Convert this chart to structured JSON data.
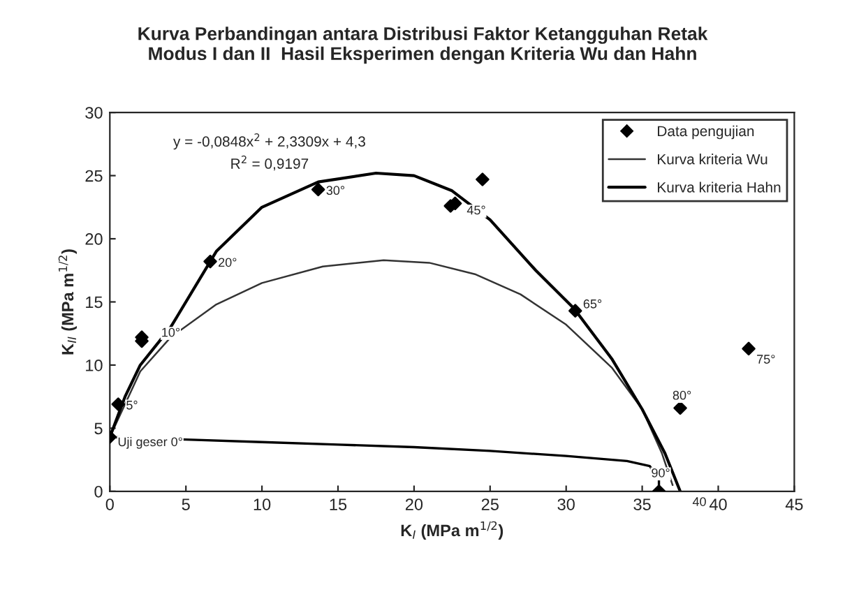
{
  "chart_data": {
    "type": "scatter",
    "title": "Kurva Perbandingan antara Distribusi Faktor Ketangguhan Retak\nModus I dan II  Hasil Eksperimen dengan Kriteria Wu dan Hahn",
    "xlabel": "K$_{I}$ (MPa m$^{1/2}$)",
    "ylabel": "K$_{II}$ (MPa m$^{1/2}$)",
    "xlim": [
      0,
      45
    ],
    "xticks": [
      0,
      5,
      10,
      15,
      20,
      25,
      30,
      35,
      40,
      45
    ],
    "ylim": [
      0,
      30
    ],
    "yticks": [
      0,
      5,
      10,
      15,
      20,
      25,
      30
    ],
    "grid": false,
    "legend": "top right",
    "series": [
      {
        "name": "Data pengujian",
        "marker": "diamond",
        "color": "#000000",
        "x": [
          0,
          0.55,
          2.1,
          2.1,
          6.6,
          13.7,
          22.4,
          22.7,
          24.5,
          30.6,
          42.0,
          37.5,
          36.1
        ],
        "values": [
          4.3,
          6.9,
          12.2,
          11.9,
          18.2,
          23.9,
          22.6,
          22.8,
          24.7,
          14.3,
          11.3,
          6.6,
          0
        ]
      },
      {
        "name": "Kurva kriteria Wu",
        "type": "line",
        "color": "#333333",
        "x": [
          0,
          2,
          4,
          7,
          10,
          14,
          18,
          21,
          24,
          27,
          30,
          33,
          35,
          36.3,
          37
        ],
        "values": [
          4.3,
          9.5,
          12.2,
          14.8,
          16.5,
          17.8,
          18.3,
          18.1,
          17.2,
          15.6,
          13.2,
          9.8,
          6.5,
          3,
          0.5
        ]
      },
      {
        "name": "Kurva kriteria Hahn",
        "type": "line",
        "color": "#000000",
        "x": [
          0,
          1,
          2,
          4,
          7,
          10,
          13.7,
          17.5,
          20,
          22.5,
          25,
          28,
          30.5,
          33,
          35,
          36.5,
          37.5
        ],
        "values": [
          4.3,
          7.5,
          10,
          13,
          19,
          22.5,
          24.5,
          25.2,
          25,
          23.8,
          21.5,
          17.5,
          14.5,
          10.5,
          6.5,
          3,
          0
        ]
      },
      {
        "type": "line",
        "color": "#000000",
        "x": [
          0,
          5,
          10,
          15,
          20,
          25,
          30,
          34,
          35.5,
          36.1,
          36.1
        ],
        "values": [
          4.3,
          4.1,
          3.9,
          3.7,
          3.5,
          3.2,
          2.8,
          2.4,
          2,
          1,
          0
        ]
      }
    ],
    "annotations": [
      {
        "text": "Uji geser 0°",
        "x": 0,
        "y": 4.3
      },
      {
        "text": "5°",
        "x": 0.55,
        "y": 6.9
      },
      {
        "text": "10°",
        "x": 2.1,
        "y": 12.2
      },
      {
        "text": "20°",
        "x": 6.6,
        "y": 18.2
      },
      {
        "text": "30°",
        "x": 13.7,
        "y": 23.9
      },
      {
        "text": "45°",
        "x": 22.7,
        "y": 22.8
      },
      {
        "text": "65°",
        "x": 30.6,
        "y": 14.3
      },
      {
        "text": "75°",
        "x": 42.0,
        "y": 11.3
      },
      {
        "text": "80°",
        "x": 37.5,
        "y": 6.6
      },
      {
        "text": "90°",
        "x": 36.1,
        "y": 0
      },
      "40",
      "y = -0,0848x$^{2}$ + 2,3309x + 4,3",
      "R$^{2}$ = 0,9197"
    ]
  }
}
